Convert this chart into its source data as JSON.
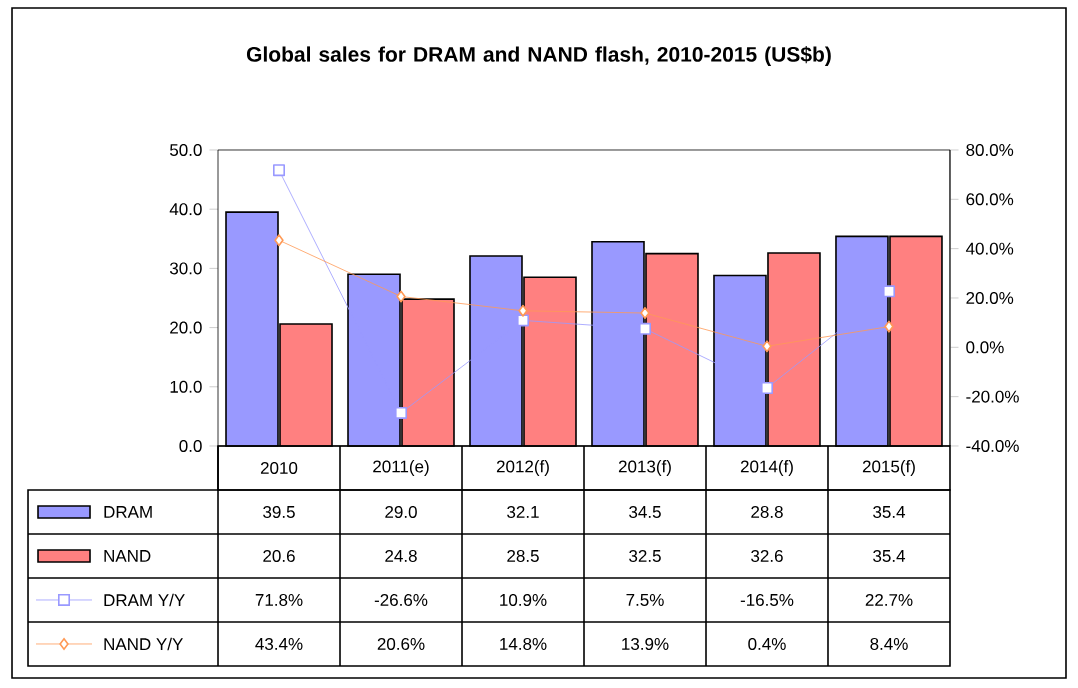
{
  "chart_data": {
    "type": "bar",
    "title": "Global sales for DRAM and NAND flash, 2010-2015 (US$b)",
    "categories": [
      "2010",
      "2011(e)",
      "2012(f)",
      "2013(f)",
      "2014(f)",
      "2015(f)"
    ],
    "series": [
      {
        "name": "DRAM",
        "color": "#9999ff",
        "values": [
          39.5,
          29.0,
          32.1,
          34.5,
          28.8,
          35.4
        ],
        "value_labels": [
          "39.5",
          "29.0",
          "32.1",
          "34.5",
          "28.8",
          "35.4"
        ]
      },
      {
        "name": "NAND",
        "color": "#ff8080",
        "values": [
          20.6,
          24.8,
          28.5,
          32.5,
          32.6,
          35.4
        ],
        "value_labels": [
          "20.6",
          "24.8",
          "28.5",
          "32.5",
          "32.6",
          "35.4"
        ]
      },
      {
        "name": "DRAM Y/Y",
        "type": "line",
        "axis": "y2",
        "marker": "square",
        "color": "#9999ff",
        "values": [
          71.8,
          -26.6,
          10.9,
          7.5,
          -16.5,
          22.7
        ],
        "value_labels": [
          "71.8%",
          "-26.6%",
          "10.9%",
          "7.5%",
          "-16.5%",
          "22.7%"
        ]
      },
      {
        "name": "NAND Y/Y",
        "type": "line",
        "axis": "y2",
        "marker": "diamond",
        "color": "#ff9955",
        "values": [
          43.4,
          20.6,
          14.8,
          13.9,
          0.4,
          8.4
        ],
        "value_labels": [
          "43.4%",
          "20.6%",
          "14.8%",
          "13.9%",
          "0.4%",
          "8.4%"
        ]
      }
    ],
    "ylim": [
      0,
      50
    ],
    "yticks": [
      {
        "value": 0,
        "label": "0.0"
      },
      {
        "value": 10,
        "label": "10.0"
      },
      {
        "value": 20,
        "label": "20.0"
      },
      {
        "value": 30,
        "label": "30.0"
      },
      {
        "value": 40,
        "label": "40.0"
      },
      {
        "value": 50,
        "label": "50.0"
      }
    ],
    "y2lim": [
      -40,
      80
    ],
    "y2ticks": [
      {
        "value": -40,
        "label": "-40.0%"
      },
      {
        "value": -20,
        "label": "-20.0%"
      },
      {
        "value": 0,
        "label": "0.0%"
      },
      {
        "value": 20,
        "label": "20.0%"
      },
      {
        "value": 40,
        "label": "40.0%"
      },
      {
        "value": 60,
        "label": "60.0%"
      },
      {
        "value": 80,
        "label": "80.0%"
      }
    ],
    "grid": false,
    "legend": "bottom",
    "line_style": "solid"
  }
}
